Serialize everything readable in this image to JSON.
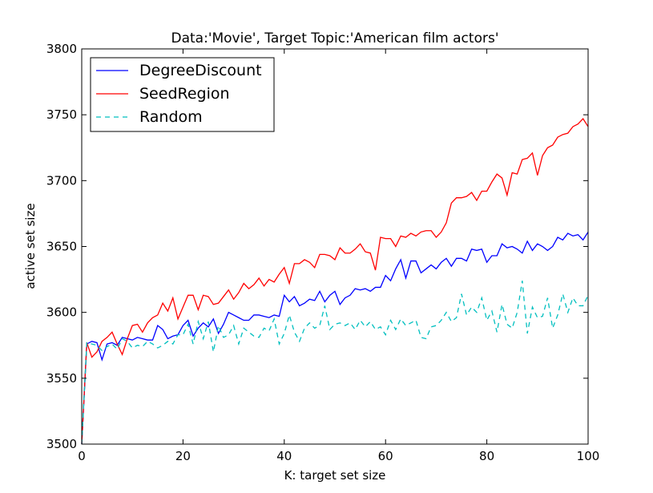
{
  "chart_data": {
    "type": "line",
    "title": "Data:'Movie', Target Topic:'American film actors'",
    "xlabel": "K: target set size",
    "ylabel": "active set size",
    "xlim": [
      0,
      100
    ],
    "ylim": [
      3500,
      3800
    ],
    "xticks": [
      0,
      20,
      40,
      60,
      80,
      100
    ],
    "yticks": [
      3500,
      3550,
      3600,
      3650,
      3700,
      3750,
      3800
    ],
    "grid": false,
    "legend_position": "top-left",
    "x": [
      0,
      1,
      2,
      3,
      4,
      5,
      6,
      7,
      8,
      9,
      10,
      11,
      12,
      13,
      14,
      15,
      16,
      17,
      18,
      19,
      20,
      21,
      22,
      23,
      24,
      25,
      26,
      27,
      28,
      29,
      30,
      31,
      32,
      33,
      34,
      35,
      36,
      37,
      38,
      39,
      40,
      41,
      42,
      43,
      44,
      45,
      46,
      47,
      48,
      49,
      50,
      51,
      52,
      53,
      54,
      55,
      56,
      57,
      58,
      59,
      60,
      61,
      62,
      63,
      64,
      65,
      66,
      67,
      68,
      69,
      70,
      71,
      72,
      73,
      74,
      75,
      76,
      77,
      78,
      79,
      80,
      81,
      82,
      83,
      84,
      85,
      86,
      87,
      88,
      89,
      90,
      91,
      92,
      93,
      94,
      95,
      96,
      97,
      98,
      99,
      100
    ],
    "series": [
      {
        "name": "DegreeDiscount",
        "color": "#0000ff",
        "dash": "solid",
        "values": [
          3500,
          3576,
          3578,
          3577,
          3564,
          3576,
          3577,
          3575,
          3581,
          3580,
          3579,
          3581,
          3580,
          3579,
          3579,
          3590,
          3587,
          3580,
          3582,
          3583,
          3590,
          3594,
          3582,
          3588,
          3592,
          3589,
          3595,
          3584,
          3591,
          3600,
          3598,
          3596,
          3594,
          3594,
          3598,
          3598,
          3597,
          3596,
          3598,
          3597,
          3613,
          3608,
          3612,
          3605,
          3607,
          3610,
          3609,
          3616,
          3608,
          3613,
          3616,
          3606,
          3611,
          3613,
          3618,
          3617,
          3618,
          3616,
          3619,
          3619,
          3628,
          3624,
          3633,
          3640,
          3626,
          3639,
          3639,
          3630,
          3633,
          3636,
          3633,
          3638,
          3641,
          3635,
          3641,
          3641,
          3639,
          3648,
          3647,
          3648,
          3638,
          3643,
          3643,
          3652,
          3649,
          3650,
          3648,
          3645,
          3654,
          3647,
          3652,
          3650,
          3647,
          3650,
          3657,
          3655,
          3660,
          3658,
          3659,
          3655,
          3661
        ]
      },
      {
        "name": "SeedRegion",
        "color": "#ff0000",
        "dash": "solid",
        "values": [
          3500,
          3577,
          3566,
          3570,
          3578,
          3581,
          3585,
          3576,
          3568,
          3580,
          3590,
          3591,
          3585,
          3592,
          3596,
          3598,
          3607,
          3601,
          3611,
          3595,
          3604,
          3613,
          3613,
          3602,
          3613,
          3612,
          3606,
          3607,
          3612,
          3617,
          3610,
          3615,
          3622,
          3618,
          3621,
          3626,
          3620,
          3625,
          3623,
          3629,
          3634,
          3622,
          3637,
          3637,
          3640,
          3638,
          3634,
          3644,
          3644,
          3643,
          3640,
          3649,
          3645,
          3645,
          3648,
          3652,
          3646,
          3645,
          3632,
          3657,
          3656,
          3656,
          3650,
          3658,
          3657,
          3660,
          3658,
          3661,
          3662,
          3662,
          3657,
          3661,
          3668,
          3683,
          3687,
          3687,
          3688,
          3691,
          3685,
          3692,
          3692,
          3699,
          3705,
          3702,
          3689,
          3706,
          3705,
          3716,
          3717,
          3721,
          3704,
          3719,
          3725,
          3727,
          3733,
          3735,
          3736,
          3741,
          3743,
          3747,
          3741
        ]
      },
      {
        "name": "Random",
        "color": "#00bfbf",
        "dash": "dashed",
        "values": [
          3500,
          3577,
          3576,
          3575,
          3571,
          3574,
          3576,
          3572,
          3580,
          3578,
          3573,
          3575,
          3574,
          3578,
          3576,
          3573,
          3575,
          3578,
          3576,
          3583,
          3583,
          3591,
          3576,
          3593,
          3580,
          3593,
          3570,
          3590,
          3581,
          3583,
          3590,
          3576,
          3588,
          3585,
          3582,
          3581,
          3588,
          3586,
          3595,
          3576,
          3584,
          3598,
          3585,
          3578,
          3588,
          3592,
          3588,
          3590,
          3605,
          3587,
          3591,
          3592,
          3590,
          3592,
          3587,
          3594,
          3589,
          3593,
          3587,
          3589,
          3583,
          3594,
          3587,
          3595,
          3590,
          3592,
          3594,
          3581,
          3580,
          3589,
          3590,
          3594,
          3600,
          3593,
          3596,
          3614,
          3598,
          3604,
          3600,
          3611,
          3594,
          3601,
          3585,
          3606,
          3591,
          3588,
          3600,
          3624,
          3584,
          3604,
          3596,
          3597,
          3611,
          3588,
          3598,
          3614,
          3600,
          3611,
          3605,
          3605,
          3613
        ]
      }
    ]
  }
}
